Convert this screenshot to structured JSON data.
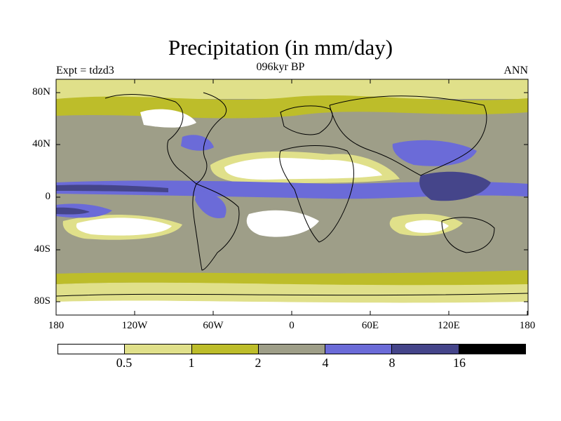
{
  "title": "Precipitation (in mm/day)",
  "subtitle": "096kyr BP",
  "left_label": "Expt = tdzd3",
  "right_label": "ANN",
  "y_ticks": [
    "80N",
    "40N",
    "0",
    "40S",
    "80S"
  ],
  "x_ticks": [
    "180",
    "120W",
    "60W",
    "0",
    "60E",
    "120E",
    "180"
  ],
  "colorbar": {
    "colors": [
      "#ffffff",
      "#e0e08a",
      "#bdbd2a",
      "#9e9e88",
      "#6b6bd8",
      "#45458a",
      "#000000"
    ],
    "labels": [
      "0.5",
      "1",
      "2",
      "4",
      "8",
      "16"
    ]
  },
  "chart_data": {
    "type": "heatmap",
    "title": "Precipitation (in mm/day)",
    "subtitle": "096kyr BP",
    "experiment": "Expt = tdzd3",
    "season": "ANN",
    "x_range": [
      -180,
      180
    ],
    "y_range": [
      -90,
      90
    ],
    "levels": [
      0.5,
      1,
      2,
      4,
      8,
      16
    ],
    "colors": [
      "#ffffff",
      "#e0e08a",
      "#bdbd2a",
      "#9e9e88",
      "#6b6bd8",
      "#45458a",
      "#000000"
    ]
  }
}
